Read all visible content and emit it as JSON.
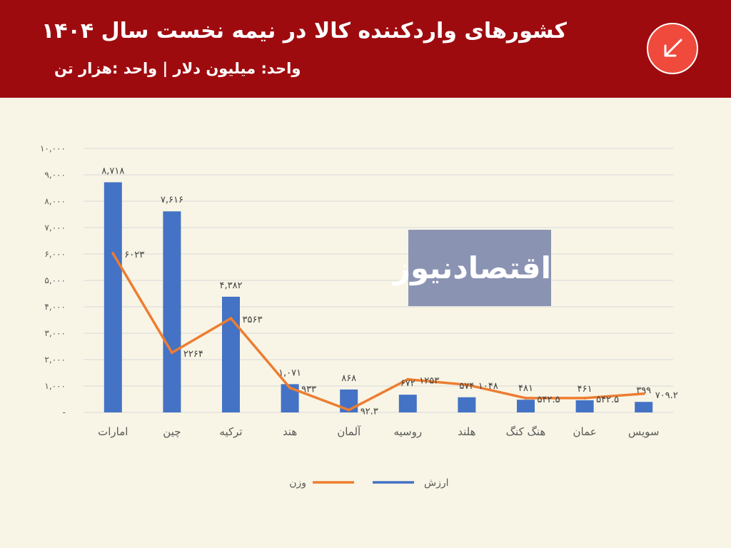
{
  "header": {
    "title": "کشورهای واردکننده کالا در نیمه نخست سال ۱۴۰۴",
    "subtitle": "واحد: میلیون دلار | واحد :هزار تن",
    "badge_icon": "arrow-down-left-icon"
  },
  "watermark": {
    "text": "اقتصادنیوز"
  },
  "colors": {
    "header_bg": "#9e0b0f",
    "page_bg": "#f8f5e6",
    "bar": "#4472c4",
    "line": "#ed7d31",
    "badge": "#ef4a3c"
  },
  "chart_data": {
    "type": "bar",
    "categories": [
      "امارات",
      "چین",
      "ترکیه",
      "هند",
      "آلمان",
      "روسیه",
      "هلند",
      "هنگ کنگ",
      "عمان",
      "سویس"
    ],
    "series": [
      {
        "name": "ارزش",
        "kind": "bar",
        "values": [
          8718,
          7616,
          4382,
          1071,
          868,
          672,
          574,
          481,
          461,
          399
        ],
        "labels": [
          "۸,۷۱۸",
          "۷,۶۱۶",
          "۴,۳۸۲",
          "۱,۰۷۱",
          "۸۶۸",
          "۶۷۲",
          "۵۷۴",
          "۴۸۱",
          "۴۶۱",
          "۳۹۹"
        ]
      },
      {
        "name": "وزن",
        "kind": "line",
        "values": [
          6023,
          2264,
          3563,
          933,
          92.3,
          1253,
          1048,
          542.5,
          542.5,
          709.2
        ],
        "labels": [
          "۶۰۲۳",
          "۲۲۶۴",
          "۳۵۶۳",
          "۹۳۳",
          "۹۲.۳",
          "۱۲۵۳",
          "۱۰۴۸",
          "۵۴۲.۵",
          "۵۴۲.۵",
          "۷۰۹.۲"
        ]
      }
    ],
    "ylim": [
      0,
      10000
    ],
    "yticks": [
      0,
      1000,
      2000,
      3000,
      4000,
      5000,
      6000,
      7000,
      8000,
      9000,
      10000
    ],
    "ytick_labels": [
      "-",
      "۱,۰۰۰",
      "۲,۰۰۰",
      "۳,۰۰۰",
      "۴,۰۰۰",
      "۵,۰۰۰",
      "۶,۰۰۰",
      "۷,۰۰۰",
      "۸,۰۰۰",
      "۹,۰۰۰",
      "۱۰,۰۰۰"
    ],
    "grid": true,
    "legend": "bottom",
    "legend_entries": [
      "ارزش",
      "وزن"
    ]
  }
}
